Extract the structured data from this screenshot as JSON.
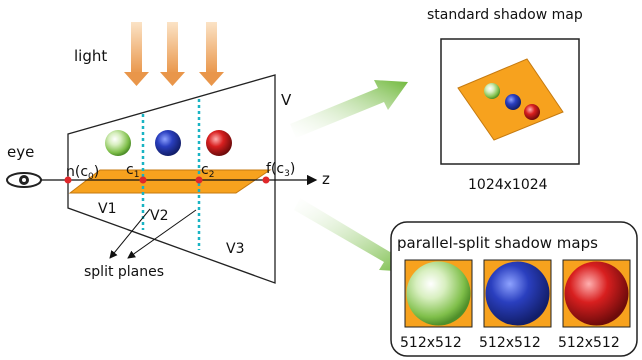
{
  "labels": {
    "light": "light",
    "eye": "eye",
    "frustum": "V",
    "near": "n(c",
    "near_sub": "0",
    "split1": "c",
    "split1_sub": "1",
    "split2": "c",
    "split2_sub": "2",
    "far": "f(c",
    "far_sub": "3",
    "close_paren": ")",
    "axis": "z",
    "v1": "V1",
    "v2": "V2",
    "v3": "V3",
    "split_planes": "split planes"
  },
  "standard_map": {
    "title": "standard shadow map",
    "size": "1024x1024"
  },
  "pssm": {
    "title": "parallel-split shadow maps",
    "sizes": [
      "512x512",
      "512x512",
      "512x512"
    ]
  },
  "colors": {
    "orange": "#f7a21e",
    "green": "#8fcf5a",
    "blue": "#2a3fbf",
    "red": "#d81f1f",
    "split_line": "#19b3c3",
    "dot": "#e0272a",
    "arrow": "#7cc142"
  }
}
